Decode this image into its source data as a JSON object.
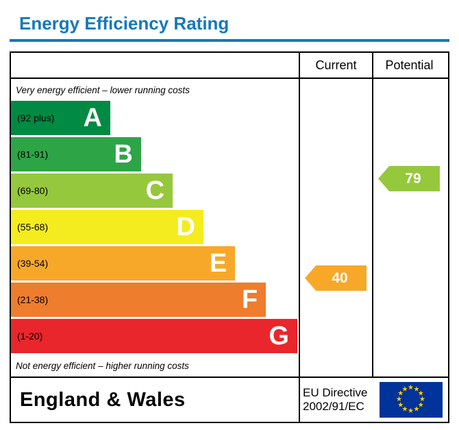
{
  "title": "Energy Efficiency Rating",
  "accent_color": "#1478be",
  "header": {
    "current_label": "Current",
    "potential_label": "Potential"
  },
  "notes": {
    "top": "Very energy efficient – lower running costs",
    "bottom": "Not energy efficient – higher running costs"
  },
  "footer": {
    "region": "England & Wales",
    "directive_line1": "EU Directive",
    "directive_line2": "2002/91/EC",
    "flag_icon": "eu-flag-icon"
  },
  "chart_data": {
    "type": "bar",
    "title": "Energy Efficiency Rating",
    "categories": [
      "A",
      "B",
      "C",
      "D",
      "E",
      "F",
      "G"
    ],
    "bands": [
      {
        "letter": "A",
        "range": "(92 plus)",
        "color": "#008a43",
        "width_pct": 34.5
      },
      {
        "letter": "B",
        "range": "(81-91)",
        "color": "#2da546",
        "width_pct": 45.2
      },
      {
        "letter": "C",
        "range": "(69-80)",
        "color": "#96c83d",
        "width_pct": 56.2
      },
      {
        "letter": "D",
        "range": "(55-68)",
        "color": "#f5ec1f",
        "width_pct": 66.9
      },
      {
        "letter": "E",
        "range": "(39-54)",
        "color": "#f8a829",
        "width_pct": 77.9
      },
      {
        "letter": "F",
        "range": "(21-38)",
        "color": "#ee7d2d",
        "width_pct": 88.6
      },
      {
        "letter": "G",
        "range": "(1-20)",
        "color": "#e9262b",
        "width_pct": 99.5
      }
    ],
    "current": {
      "value": 40,
      "band": "E",
      "color": "#f8a829"
    },
    "potential": {
      "value": 79,
      "band": "C",
      "color": "#96c83d"
    }
  }
}
